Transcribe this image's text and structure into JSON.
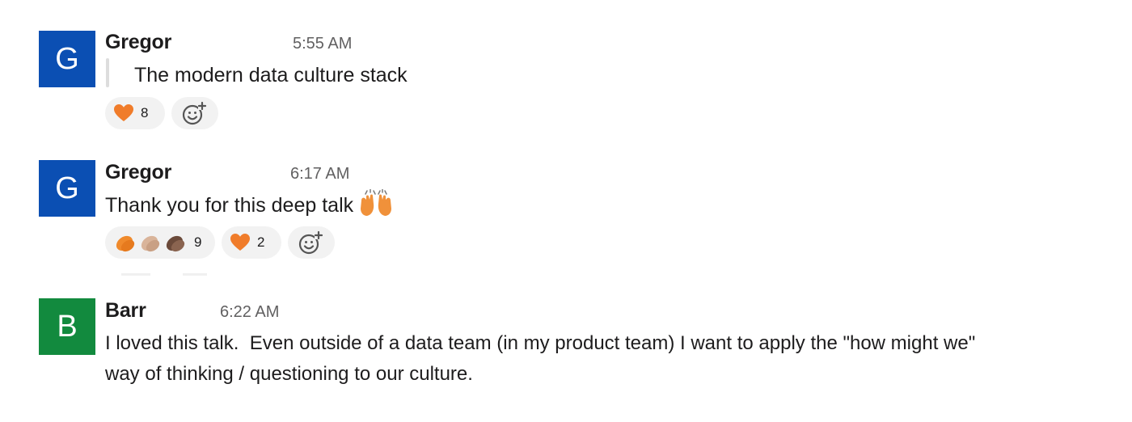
{
  "messages": [
    {
      "avatar_letter": "G",
      "avatar_color": "#0b4fb3",
      "sender": "Gregor",
      "time": "5:55 AM",
      "text": "The modern data culture stack",
      "quoted": true,
      "reactions": [
        {
          "emoji": "orange-heart",
          "count": "8"
        }
      ]
    },
    {
      "avatar_letter": "G",
      "avatar_color": "#0b4fb3",
      "sender": "Gregor",
      "time": "6:17 AM",
      "text": "Thank you for this deep talk",
      "inline_emoji": "raised-hands",
      "reactions": [
        {
          "emoji": "clapping-hands-multi-tone",
          "count": "9"
        },
        {
          "emoji": "orange-heart",
          "count": "2"
        }
      ]
    },
    {
      "avatar_letter": "B",
      "avatar_color": "#128a3e",
      "sender": "Barr",
      "time": "6:22 AM",
      "text_line1": "I loved this talk.  Even outside of a data team (in my product team) I want to apply the \"how might we\"",
      "text_line2": "way of thinking / questioning to our culture."
    }
  ],
  "icons": {
    "add_reaction": "add-reaction-icon",
    "heart_color": "#f07c2a",
    "clap_colors": [
      "#f08a2c",
      "#d9b49a",
      "#6b4a3a"
    ]
  }
}
